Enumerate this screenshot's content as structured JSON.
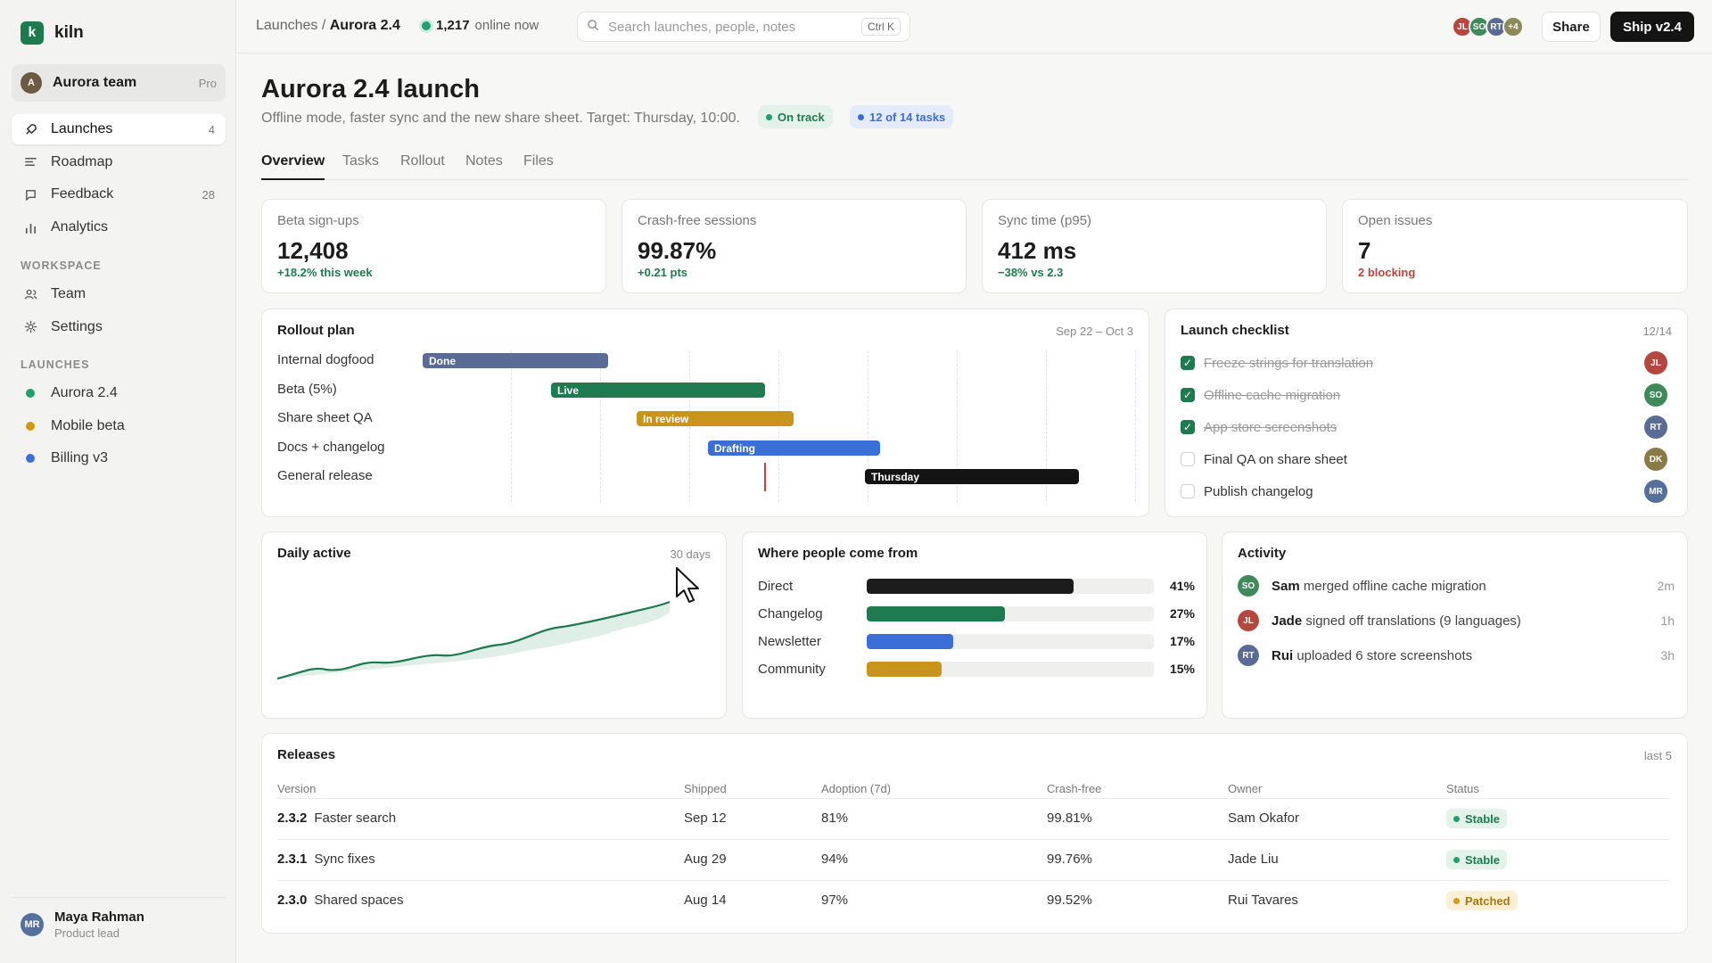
{
  "app": {
    "logo_letter": "k",
    "name": "kiln"
  },
  "team": {
    "initial": "A",
    "name": "Aurora team",
    "plan": "Pro"
  },
  "sidebar": {
    "main": [
      {
        "label": "Launches",
        "count": "4",
        "icon": "rocket-icon"
      },
      {
        "label": "Roadmap",
        "count": "",
        "icon": "roadmap-icon"
      },
      {
        "label": "Feedback",
        "count": "28",
        "icon": "message-icon"
      },
      {
        "label": "Analytics",
        "count": "",
        "icon": "bar-chart-icon"
      }
    ],
    "workspace_title": "WORKSPACE",
    "workspace": [
      {
        "label": "Team",
        "icon": "people-icon"
      },
      {
        "label": "Settings",
        "icon": "gear-icon"
      }
    ],
    "launches_title": "LAUNCHES",
    "launches": [
      {
        "label": "Aurora 2.4",
        "color": "#22a06b"
      },
      {
        "label": "Mobile beta",
        "color": "#d39a16"
      },
      {
        "label": "Billing v3",
        "color": "#3b6fd8"
      }
    ]
  },
  "user": {
    "initials": "MR",
    "name": "Maya Rahman",
    "role": "Product lead"
  },
  "topbar": {
    "crumb_parent": "Launches",
    "crumb_sep": "/",
    "crumb_current": "Aurora 2.4",
    "online_count": "1,217",
    "online_label": "online now",
    "search_placeholder": "Search launches, people, notes",
    "search_shortcut": "Ctrl K",
    "avatars": [
      {
        "initials": "JL",
        "color": "#b5473f"
      },
      {
        "initials": "SO",
        "color": "#3f8a5a"
      },
      {
        "initials": "RT",
        "color": "#5a6b95"
      },
      {
        "initials": "+4",
        "color": "#8a8a5a"
      }
    ],
    "share_label": "Share",
    "ship_label": "Ship v2.4"
  },
  "header": {
    "title": "Aurora 2.4 launch",
    "subtitle": "Offline mode, faster sync and the new share sheet. Target: Thursday, 10:00.",
    "badge_status": "On track",
    "badge_tasks": "12 of 14 tasks"
  },
  "tabs": [
    "Overview",
    "Tasks",
    "Rollout",
    "Notes",
    "Files"
  ],
  "stats": [
    {
      "label": "Beta sign-ups",
      "value": "12,408",
      "delta": "+18.2% this week",
      "delta_color": "#1e7a4f"
    },
    {
      "label": "Crash-free sessions",
      "value": "99.87%",
      "delta": "+0.21 pts",
      "delta_color": "#1e7a4f"
    },
    {
      "label": "Sync time (p95)",
      "value": "412 ms",
      "delta": "−38% vs 2.3",
      "delta_color": "#1e7a4f"
    },
    {
      "label": "Open issues",
      "value": "7",
      "delta": "2 blocking",
      "delta_color": "#b5473f"
    }
  ],
  "rollout": {
    "title": "Rollout plan",
    "range": "Sep 22 – Oct 3",
    "rows": [
      {
        "label": "Internal dogfood",
        "bar": "Done",
        "color": "#5a6b95"
      },
      {
        "label": "Beta (5%)",
        "bar": "Live",
        "color": "#1e7a4f"
      },
      {
        "label": "Share sheet QA",
        "bar": "In review",
        "color": "#c9941c"
      },
      {
        "label": "Docs + changelog",
        "bar": "Drafting",
        "color": "#3b6fd8"
      },
      {
        "label": "General release",
        "bar": "Thursday",
        "color": "#141414"
      }
    ]
  },
  "checklist": {
    "title": "Launch checklist",
    "count": "12/14",
    "items": [
      {
        "text": "Freeze strings for translation",
        "done": true,
        "owner": "JL",
        "color": "#b5473f"
      },
      {
        "text": "Offline cache migration",
        "done": true,
        "owner": "SO",
        "color": "#3f8a5a"
      },
      {
        "text": "App store screenshots",
        "done": true,
        "owner": "RT",
        "color": "#5a6b95"
      },
      {
        "text": "Final QA on share sheet",
        "done": false,
        "owner": "DK",
        "color": "#8a7a45"
      },
      {
        "text": "Publish changelog",
        "done": false,
        "owner": "MR",
        "color": "#55709a"
      }
    ]
  },
  "daily": {
    "title": "Daily active",
    "range": "30 days"
  },
  "sources": {
    "title": "Where people come from",
    "rows": [
      {
        "name": "Direct",
        "pct": "41%",
        "value": 0.72,
        "color": "#1c1c1c"
      },
      {
        "name": "Changelog",
        "pct": "27%",
        "value": 0.48,
        "color": "#1e7a4f"
      },
      {
        "name": "Newsletter",
        "pct": "17%",
        "value": 0.3,
        "color": "#3b6fd8"
      },
      {
        "name": "Community",
        "pct": "15%",
        "value": 0.26,
        "color": "#c9941c"
      }
    ]
  },
  "activity": {
    "title": "Activity",
    "items": [
      {
        "initials": "SO",
        "color": "#3f8a5a",
        "who": "Sam",
        "what": "merged offline cache migration",
        "time": "2m"
      },
      {
        "initials": "JL",
        "color": "#b5473f",
        "who": "Jade",
        "what": "signed off translations (9 languages)",
        "time": "1h"
      },
      {
        "initials": "RT",
        "color": "#5a6b95",
        "who": "Rui",
        "what": "uploaded 6 store screenshots",
        "time": "3h"
      }
    ]
  },
  "releases": {
    "title": "Releases",
    "meta": "last 5",
    "columns": [
      "Version",
      "Shipped",
      "Adoption (7d)",
      "Crash-free",
      "Owner",
      "Status"
    ],
    "rows": [
      {
        "version": "2.3.2",
        "name": "Faster search",
        "shipped": "Sep 12",
        "adoption": "81%",
        "crash_free": "99.81%",
        "owner": "Sam Okafor",
        "status": "Stable",
        "status_bg": "#e3f3ea",
        "status_fg": "#1e7a4f"
      },
      {
        "version": "2.3.1",
        "name": "Sync fixes",
        "shipped": "Aug 29",
        "adoption": "94%",
        "crash_free": "99.76%",
        "owner": "Jade Liu",
        "status": "Stable",
        "status_bg": "#e3f3ea",
        "status_fg": "#1e7a4f"
      },
      {
        "version": "2.3.0",
        "name": "Shared spaces",
        "shipped": "Aug 14",
        "adoption": "97%",
        "crash_free": "99.52%",
        "owner": "Rui Tavares",
        "status": "Patched",
        "status_bg": "#fbf0d6",
        "status_fg": "#a8780e"
      }
    ]
  }
}
